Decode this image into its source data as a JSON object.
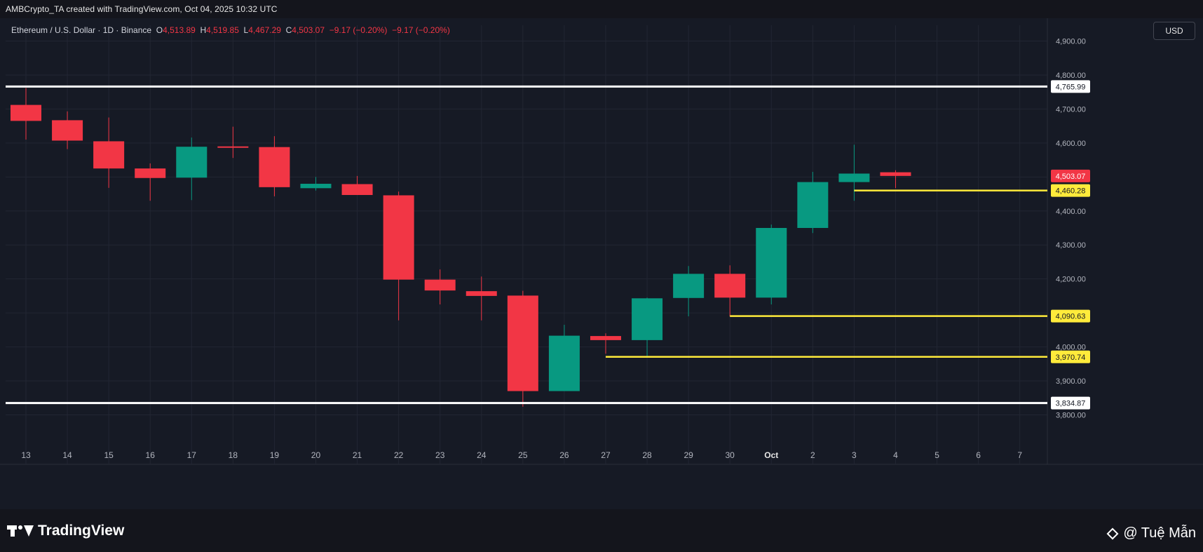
{
  "header": {
    "text": "AMBCrypto_TA created with TradingView.com, Oct 04, 2025 10:32 UTC"
  },
  "legend": {
    "symbol": "Ethereum / U.S. Dollar · 1D · Binance",
    "o_label": "O",
    "o_value": "4,513.89",
    "h_label": "H",
    "h_value": "4,519.85",
    "l_label": "L",
    "l_value": "4,467.29",
    "c_label": "C",
    "c_value": "4,503.07",
    "change1": "−9.17 (−0.20%)",
    "change2": "−9.17 (−0.20%)"
  },
  "currency_button": "USD",
  "footer": {
    "brand": "TradingView",
    "watermark": "@ Tuệ Mẫn"
  },
  "colors": {
    "background": "#161a25",
    "up": "#089981",
    "down": "#f23645",
    "grid": "#222633",
    "support_line": "#ffeb3b",
    "range_line": "#ffffff"
  },
  "chart_data": {
    "type": "candlestick",
    "ylim": [
      3750,
      4940
    ],
    "y_ticks": [
      3800,
      3900,
      4000,
      4100,
      4200,
      4300,
      4400,
      4500,
      4600,
      4700,
      4800,
      4900
    ],
    "y_tick_labels": [
      "3,800.00",
      "3,900.00",
      "4,000.00",
      "4,100.00",
      "4,200.00",
      "4,300.00",
      "4,400.00",
      "4,500.00",
      "4,600.00",
      "4,700.00",
      "4,800.00",
      "4,900.00"
    ],
    "x_labels": [
      "13",
      "14",
      "15",
      "16",
      "17",
      "18",
      "19",
      "20",
      "21",
      "22",
      "23",
      "24",
      "25",
      "26",
      "27",
      "28",
      "29",
      "30",
      "Oct",
      "2",
      "3",
      "4",
      "5",
      "6",
      "7"
    ],
    "x_bold": [
      "Oct"
    ],
    "candles": [
      {
        "x": "13",
        "open": 4712,
        "high": 4762,
        "low": 4610,
        "close": 4665
      },
      {
        "x": "14",
        "open": 4667,
        "high": 4693,
        "low": 4582,
        "close": 4607
      },
      {
        "x": "15",
        "open": 4605,
        "high": 4675,
        "low": 4468,
        "close": 4525
      },
      {
        "x": "16",
        "open": 4525,
        "high": 4540,
        "low": 4430,
        "close": 4497
      },
      {
        "x": "17",
        "open": 4498,
        "high": 4616,
        "low": 4432,
        "close": 4589
      },
      {
        "x": "18",
        "open": 4590,
        "high": 4648,
        "low": 4556,
        "close": 4586
      },
      {
        "x": "19",
        "open": 4588,
        "high": 4620,
        "low": 4443,
        "close": 4470
      },
      {
        "x": "20",
        "open": 4467,
        "high": 4500,
        "low": 4460,
        "close": 4480
      },
      {
        "x": "21",
        "open": 4479,
        "high": 4503,
        "low": 4447,
        "close": 4447
      },
      {
        "x": "22",
        "open": 4446,
        "high": 4457,
        "low": 4078,
        "close": 4198
      },
      {
        "x": "23",
        "open": 4198,
        "high": 4228,
        "low": 4125,
        "close": 4166
      },
      {
        "x": "24",
        "open": 4164,
        "high": 4207,
        "low": 4078,
        "close": 4150
      },
      {
        "x": "25",
        "open": 4151,
        "high": 4165,
        "low": 3824,
        "close": 3870
      },
      {
        "x": "26",
        "open": 3870,
        "high": 4065,
        "low": 3870,
        "close": 4033
      },
      {
        "x": "27",
        "open": 4032,
        "high": 4040,
        "low": 3980,
        "close": 4020
      },
      {
        "x": "28",
        "open": 4020,
        "high": 4145,
        "low": 3970,
        "close": 4143
      },
      {
        "x": "29",
        "open": 4144,
        "high": 4238,
        "low": 4090,
        "close": 4215
      },
      {
        "x": "30",
        "open": 4215,
        "high": 4240,
        "low": 4090,
        "close": 4145
      },
      {
        "x": "Oct",
        "open": 4145,
        "high": 4360,
        "low": 4125,
        "close": 4350
      },
      {
        "x": "2",
        "open": 4350,
        "high": 4515,
        "low": 4335,
        "close": 4485
      },
      {
        "x": "3",
        "open": 4485,
        "high": 4595,
        "low": 4430,
        "close": 4510
      },
      {
        "x": "4",
        "open": 4513.89,
        "high": 4519.85,
        "low": 4467.29,
        "close": 4503.07
      }
    ],
    "horizontal_lines": [
      {
        "price": 4765.99,
        "label": "4,765.99",
        "style": "range",
        "from": "start"
      },
      {
        "price": 3834.87,
        "label": "3,834.87",
        "style": "range",
        "from": "start"
      },
      {
        "price": 4460.28,
        "label": "4,460.28",
        "style": "support",
        "from": "3"
      },
      {
        "price": 4090.63,
        "label": "4,090.63",
        "style": "support",
        "from": "30"
      },
      {
        "price": 3970.74,
        "label": "3,970.74",
        "style": "support",
        "from": "27"
      }
    ],
    "last_price": {
      "price": 4503.07,
      "label": "4,503.07"
    }
  }
}
